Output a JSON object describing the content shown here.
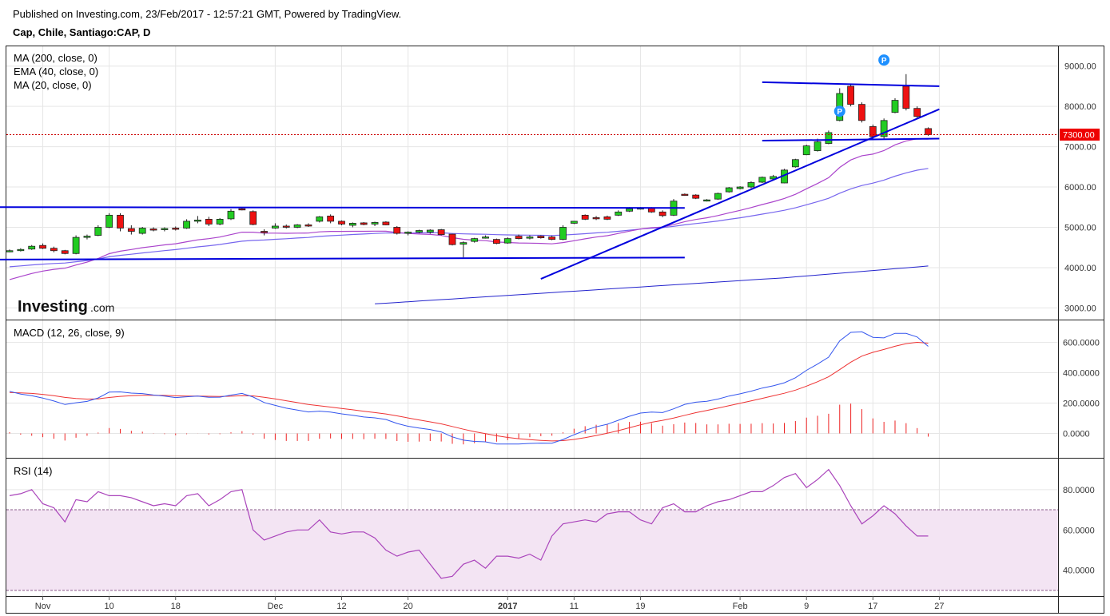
{
  "header": {
    "published": "Published on Investing.com, 23/Feb/2017 - 12:57:21 GMT, Powered by TradingView.",
    "symbol": "Cap, Chile, Santiago:CAP, D"
  },
  "logo": {
    "brand": "Investing",
    "suffix": ".com"
  },
  "colors": {
    "up": "#22cc22",
    "down": "#ee1111",
    "ma200": "#2222cc",
    "ema40": "#7766ee",
    "ma20": "#aa44cc",
    "trend": "#0000dd",
    "macd": "#3355ee",
    "signal": "#ee3333",
    "hist": "#ee2222",
    "rsi": "#aa44bb",
    "rsi_band": "#f3e4f3"
  },
  "chart_data": [
    {
      "type": "candlestick",
      "legend": [
        "MA (200, close, 0)",
        "EMA (40, close, 0)",
        "MA (20, close, 0)"
      ],
      "last_price_label": "7300.00",
      "last_price": 7300,
      "ylim": [
        2750,
        9450
      ],
      "yticks": [
        "3000.00",
        "4000.00",
        "5000.00",
        "6000.00",
        "7000.00",
        "8000.00",
        "9000.00"
      ],
      "ytick_values": [
        3000,
        4000,
        5000,
        6000,
        7000,
        8000,
        9000
      ],
      "xticks": [
        "Nov",
        "10",
        "18",
        "Dec",
        "12",
        "20",
        "2017",
        "11",
        "19",
        "Feb",
        "9",
        "17",
        "27"
      ],
      "xtick_index": [
        3,
        9,
        15,
        24,
        30,
        36,
        45,
        51,
        57,
        66,
        72,
        78,
        84
      ],
      "candles": [
        [
          4400,
          4450,
          4380,
          4420
        ],
        [
          4430,
          4480,
          4400,
          4450
        ],
        [
          4460,
          4560,
          4440,
          4530
        ],
        [
          4550,
          4600,
          4460,
          4480
        ],
        [
          4480,
          4520,
          4380,
          4420
        ],
        [
          4420,
          4440,
          4330,
          4350
        ],
        [
          4350,
          4800,
          4330,
          4750
        ],
        [
          4750,
          4820,
          4700,
          4780
        ],
        [
          4800,
          5050,
          4780,
          5000
        ],
        [
          5000,
          5350,
          4980,
          5300
        ],
        [
          5300,
          5350,
          4900,
          4980
        ],
        [
          4970,
          5050,
          4820,
          4900
        ],
        [
          4850,
          5010,
          4820,
          4980
        ],
        [
          4960,
          5000,
          4900,
          4930
        ],
        [
          4950,
          5000,
          4900,
          4970
        ],
        [
          4980,
          5020,
          4920,
          4950
        ],
        [
          4980,
          5200,
          4960,
          5150
        ],
        [
          5150,
          5280,
          5100,
          5180
        ],
        [
          5200,
          5260,
          5030,
          5080
        ],
        [
          5080,
          5230,
          5050,
          5200
        ],
        [
          5210,
          5450,
          5180,
          5400
        ],
        [
          5460,
          5500,
          5420,
          5440
        ],
        [
          5390,
          5420,
          5050,
          5070
        ],
        [
          4900,
          4950,
          4800,
          4880
        ],
        [
          4980,
          5100,
          4960,
          5030
        ],
        [
          5030,
          5070,
          4970,
          5010
        ],
        [
          5000,
          5080,
          4980,
          5060
        ],
        [
          5060,
          5100,
          5010,
          5050
        ],
        [
          5150,
          5280,
          5120,
          5260
        ],
        [
          5280,
          5320,
          5100,
          5150
        ],
        [
          5150,
          5170,
          5050,
          5080
        ],
        [
          5050,
          5120,
          5000,
          5100
        ],
        [
          5110,
          5130,
          5050,
          5070
        ],
        [
          5080,
          5140,
          5030,
          5120
        ],
        [
          5130,
          5150,
          5050,
          5060
        ],
        [
          5000,
          5030,
          4820,
          4850
        ],
        [
          4860,
          4900,
          4800,
          4880
        ],
        [
          4880,
          4940,
          4850,
          4920
        ],
        [
          4880,
          4950,
          4840,
          4930
        ],
        [
          4940,
          4960,
          4800,
          4820
        ],
        [
          4830,
          4840,
          4550,
          4570
        ],
        [
          4580,
          4650,
          4250,
          4620
        ],
        [
          4650,
          4740,
          4620,
          4720
        ],
        [
          4750,
          4800,
          4720,
          4760
        ],
        [
          4700,
          4720,
          4580,
          4600
        ],
        [
          4610,
          4750,
          4590,
          4720
        ],
        [
          4780,
          4820,
          4700,
          4720
        ],
        [
          4730,
          4800,
          4700,
          4760
        ],
        [
          4780,
          4800,
          4720,
          4740
        ],
        [
          4760,
          4790,
          4680,
          4700
        ],
        [
          4700,
          5050,
          4680,
          5000
        ],
        [
          5100,
          5160,
          5080,
          5150
        ],
        [
          5300,
          5320,
          5180,
          5200
        ],
        [
          5240,
          5280,
          5180,
          5220
        ],
        [
          5260,
          5290,
          5180,
          5200
        ],
        [
          5300,
          5420,
          5280,
          5380
        ],
        [
          5400,
          5500,
          5380,
          5460
        ],
        [
          5460,
          5500,
          5440,
          5480
        ],
        [
          5480,
          5500,
          5360,
          5380
        ],
        [
          5380,
          5420,
          5250,
          5290
        ],
        [
          5300,
          5700,
          5280,
          5650
        ],
        [
          5820,
          5840,
          5780,
          5800
        ],
        [
          5800,
          5820,
          5700,
          5720
        ],
        [
          5660,
          5700,
          5640,
          5680
        ],
        [
          5700,
          5860,
          5680,
          5840
        ],
        [
          5880,
          6000,
          5860,
          5980
        ],
        [
          5960,
          6020,
          5940,
          6000
        ],
        [
          6000,
          6140,
          5970,
          6110
        ],
        [
          6120,
          6260,
          6100,
          6240
        ],
        [
          6200,
          6300,
          6180,
          6260
        ],
        [
          6100,
          6450,
          6090,
          6420
        ],
        [
          6500,
          6700,
          6480,
          6680
        ],
        [
          6800,
          7050,
          6790,
          7020
        ],
        [
          6900,
          7200,
          6880,
          7120
        ],
        [
          7080,
          7400,
          7060,
          7350
        ],
        [
          7650,
          8450,
          7630,
          8320
        ],
        [
          8500,
          8550,
          8000,
          8050
        ],
        [
          8050,
          8100,
          7600,
          7650
        ],
        [
          7500,
          7550,
          7200,
          7250
        ],
        [
          7250,
          7700,
          7200,
          7650
        ],
        [
          7850,
          8200,
          7830,
          8150
        ],
        [
          8500,
          8800,
          7900,
          7950
        ],
        [
          7950,
          8000,
          7700,
          7750
        ],
        [
          7450,
          7480,
          7270,
          7300
        ]
      ],
      "trendlines": [
        {
          "from": [
            -1,
            5500
          ],
          "to": [
            61,
            5480
          ]
        },
        {
          "from": [
            -1,
            4200
          ],
          "to": [
            61,
            4250
          ]
        },
        {
          "from": [
            48,
            3720
          ],
          "to": [
            84,
            7930
          ]
        },
        {
          "from": [
            68,
            8600
          ],
          "to": [
            84,
            8500
          ]
        },
        {
          "from": [
            68,
            7150
          ],
          "to": [
            84,
            7200
          ]
        }
      ],
      "pivot_markers": [
        {
          "i": 75,
          "y": 7880,
          "label": "P"
        },
        {
          "i": 79,
          "y": 9150,
          "label": "P"
        }
      ]
    },
    {
      "type": "line",
      "legend": "MACD (12, 26, close, 9)",
      "ylim": [
        -150,
        740
      ],
      "yticks": [
        "0.0000",
        "200.0000",
        "400.0000",
        "600.0000"
      ],
      "ytick_values": [
        0,
        200,
        400,
        600
      ]
    },
    {
      "type": "line",
      "legend": "RSI (14)",
      "ylim": [
        28,
        95
      ],
      "yticks": [
        "40.0000",
        "60.0000",
        "80.0000"
      ],
      "ytick_values": [
        40,
        60,
        80
      ],
      "band": [
        30,
        70
      ],
      "values": [
        77,
        78,
        80,
        73,
        71,
        64,
        75,
        74,
        79,
        77,
        77,
        76,
        74,
        72,
        73,
        72,
        77,
        78,
        72,
        75,
        79,
        80,
        60,
        55,
        57,
        59,
        60,
        60,
        65,
        59,
        58,
        59,
        59,
        56,
        50,
        47,
        49,
        50,
        43,
        36,
        37,
        43,
        45,
        41,
        47,
        47,
        46,
        48,
        45,
        57,
        63,
        64,
        65,
        64,
        68,
        69,
        69,
        65,
        63,
        71,
        73,
        69,
        69,
        72,
        74,
        75,
        77,
        79,
        79,
        82,
        86,
        88,
        81,
        85,
        90,
        82,
        72,
        63,
        67,
        72,
        68,
        62,
        57,
        57
      ]
    }
  ]
}
